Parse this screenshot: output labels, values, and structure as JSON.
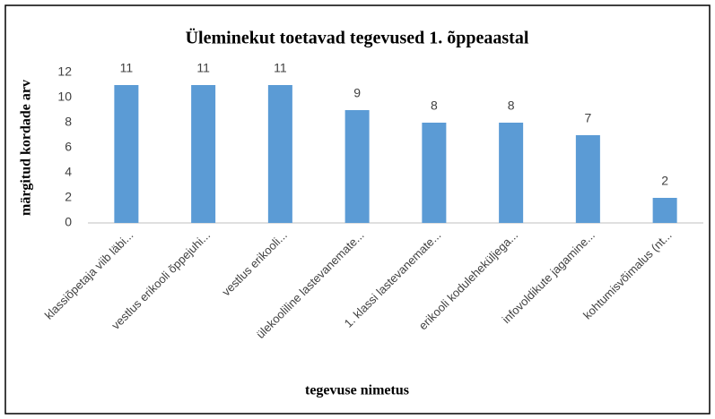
{
  "chart_data": {
    "type": "bar",
    "title": "Üleminekut toetavad tegevused 1. õppeaastal",
    "x_label": "tegevuse nimetus",
    "y_label": "märgitud kordade arv",
    "categories": [
      "klassiõpetaja viib läbi...",
      "vestlus erikooli õppejuhi...",
      "vestlus erikooli...",
      "ülekooliline lastevanemate...",
      "1. klassi lastevanemate...",
      "erikooli koduleheküljega...",
      "infovoldikute jagamine...",
      "kohtumisvõimalus (nt..."
    ],
    "values": [
      11,
      11,
      11,
      9,
      8,
      8,
      7,
      2
    ],
    "color": "#5b9bd5",
    "ylim": [
      0,
      12
    ],
    "yticks": [
      0,
      2,
      4,
      6,
      8,
      10,
      12
    ],
    "grid": false
  }
}
